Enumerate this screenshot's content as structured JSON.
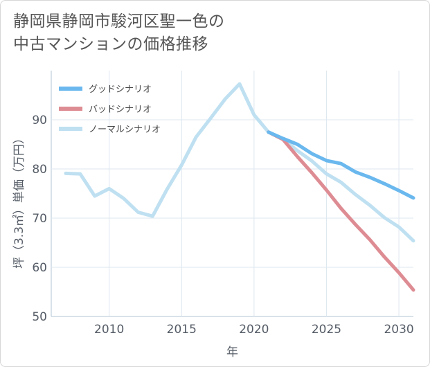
{
  "title_lines": [
    "静岡県静岡市駿河区聖一色の",
    "中古マンションの価格推移"
  ],
  "chart_data": {
    "type": "line",
    "title": "静岡県静岡市駿河区聖一色の中古マンションの価格推移",
    "xlabel": "年",
    "ylabel": "坪（3.3㎡）単価（万円）",
    "xlim": [
      2006,
      2031
    ],
    "ylim": [
      50,
      100
    ],
    "xticks": [
      2010,
      2015,
      2020,
      2025,
      2030
    ],
    "yticks": [
      50,
      60,
      70,
      80,
      90
    ],
    "grid": true,
    "legend_position": "top-left",
    "series": [
      {
        "name": "グッドシナリオ",
        "color": "#6ab8ee",
        "x": [
          2021,
          2022,
          2023,
          2024,
          2025,
          2026,
          2027,
          2028,
          2029,
          2030,
          2031
        ],
        "y": [
          87.5,
          86.2,
          85.0,
          83.1,
          81.7,
          81.1,
          79.4,
          78.3,
          77.0,
          75.6,
          74.1
        ]
      },
      {
        "name": "バッドシナリオ",
        "color": "#de8c93",
        "x": [
          2021,
          2022,
          2023,
          2024,
          2025,
          2026,
          2027,
          2028,
          2029,
          2030,
          2031
        ],
        "y": [
          87.5,
          86.0,
          82.5,
          79.2,
          75.7,
          72.0,
          68.7,
          65.6,
          62.1,
          58.9,
          55.4
        ]
      },
      {
        "name": "ノーマルシナリオ",
        "color": "#bfe0f1",
        "x": [
          2007,
          2008,
          2009,
          2010,
          2011,
          2012,
          2013,
          2014,
          2015,
          2016,
          2017,
          2018,
          2019,
          2020,
          2021,
          2022,
          2023,
          2024,
          2025,
          2026,
          2027,
          2028,
          2029,
          2030,
          2031
        ],
        "y": [
          79.1,
          79.0,
          74.5,
          76.0,
          74.0,
          71.2,
          70.4,
          75.9,
          80.8,
          86.5,
          90.3,
          94.2,
          97.3,
          91.0,
          87.5,
          86.1,
          83.7,
          81.6,
          79.0,
          77.3,
          74.8,
          72.6,
          70.1,
          68.2,
          65.4
        ]
      }
    ]
  }
}
